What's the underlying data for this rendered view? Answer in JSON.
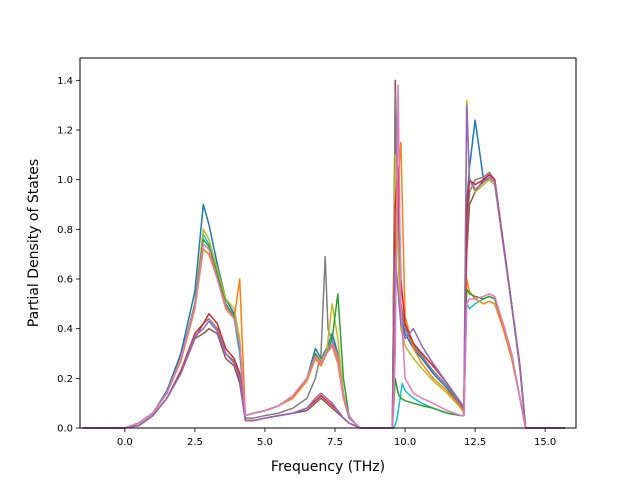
{
  "chart_data": {
    "type": "line",
    "title": "",
    "xlabel": "Frequency (THz)",
    "ylabel": "Partial Density of States",
    "xlim": [
      -1.6,
      16.1
    ],
    "ylim": [
      0.0,
      1.49
    ],
    "xticks": [
      0.0,
      2.5,
      5.0,
      7.5,
      10.0,
      12.5,
      15.0
    ],
    "xtick_labels": [
      "0.0",
      "2.5",
      "5.0",
      "7.5",
      "10.0",
      "12.5",
      "15.0"
    ],
    "yticks": [
      0.0,
      0.2,
      0.4,
      0.6,
      0.8,
      1.0,
      1.2,
      1.4
    ],
    "ytick_labels": [
      "0.0",
      "0.2",
      "0.4",
      "0.6",
      "0.8",
      "1.0",
      "1.2",
      "1.4"
    ],
    "grid": false,
    "legend": "none",
    "series": [
      {
        "color": "#17becf",
        "x": [
          -1.5,
          0.0,
          0.5,
          1.0,
          1.5,
          2.0,
          2.5,
          2.8,
          3.0,
          3.3,
          3.6,
          3.9,
          4.1,
          4.3,
          4.6,
          5.0,
          5.5,
          6.0,
          6.5,
          6.8,
          7.0,
          7.2,
          7.4,
          7.6,
          7.8,
          8.0,
          8.2,
          8.4,
          9.6,
          9.7,
          9.8,
          9.9,
          10.0,
          10.3,
          10.6,
          11.0,
          11.5,
          12.0,
          12.1,
          12.2,
          12.3,
          12.5,
          12.8,
          13.0,
          13.2,
          13.5,
          13.8,
          14.1,
          14.3,
          15.7
        ],
        "y": [
          0.0,
          0.0,
          0.02,
          0.06,
          0.14,
          0.28,
          0.5,
          0.78,
          0.74,
          0.62,
          0.5,
          0.44,
          0.3,
          0.05,
          0.06,
          0.07,
          0.09,
          0.13,
          0.2,
          0.3,
          0.26,
          0.3,
          0.34,
          0.28,
          0.12,
          0.05,
          0.02,
          0.0,
          0.0,
          0.03,
          0.1,
          0.18,
          0.15,
          0.12,
          0.1,
          0.08,
          0.06,
          0.05,
          0.05,
          0.5,
          0.48,
          0.5,
          0.52,
          0.53,
          0.52,
          0.42,
          0.3,
          0.12,
          0.0,
          0.0
        ]
      },
      {
        "color": "#8c564b",
        "x": [
          -1.5,
          0.0,
          0.5,
          1.0,
          1.5,
          2.0,
          2.5,
          2.8,
          3.0,
          3.3,
          3.6,
          3.9,
          4.1,
          4.3,
          4.6,
          5.0,
          5.5,
          6.0,
          6.5,
          6.8,
          7.0,
          7.2,
          7.4,
          7.6,
          7.8,
          8.0,
          8.2,
          8.4,
          9.55,
          9.65,
          9.75,
          9.85,
          10.0,
          10.3,
          10.6,
          11.0,
          11.5,
          12.0,
          12.1,
          12.2,
          12.3,
          12.5,
          12.8,
          13.0,
          13.2,
          13.5,
          13.8,
          14.1,
          14.3,
          15.7
        ],
        "y": [
          0.0,
          0.0,
          0.01,
          0.05,
          0.12,
          0.22,
          0.36,
          0.38,
          0.4,
          0.38,
          0.28,
          0.25,
          0.18,
          0.03,
          0.03,
          0.04,
          0.05,
          0.06,
          0.07,
          0.1,
          0.12,
          0.1,
          0.08,
          0.06,
          0.04,
          0.02,
          0.01,
          0.0,
          0.0,
          1.4,
          0.9,
          0.5,
          0.4,
          0.34,
          0.3,
          0.25,
          0.18,
          0.1,
          0.08,
          0.7,
          0.9,
          0.95,
          1.0,
          1.02,
          1.0,
          0.75,
          0.5,
          0.25,
          0.0,
          0.0
        ]
      },
      {
        "color": "#1f77b4",
        "x": [
          -1.5,
          0.0,
          0.5,
          1.0,
          1.5,
          2.0,
          2.5,
          2.8,
          3.0,
          3.3,
          3.6,
          3.9,
          4.1,
          4.3,
          4.6,
          5.0,
          5.5,
          6.0,
          6.5,
          6.8,
          7.0,
          7.2,
          7.4,
          7.6,
          7.8,
          8.0,
          8.2,
          8.4,
          9.55,
          9.65,
          9.75,
          9.85,
          10.0,
          10.3,
          10.6,
          11.0,
          11.5,
          12.0,
          12.1,
          12.2,
          12.3,
          12.5,
          12.8,
          13.0,
          13.2,
          13.5,
          13.8,
          14.1,
          14.3,
          15.7
        ],
        "y": [
          0.0,
          0.0,
          0.02,
          0.06,
          0.15,
          0.3,
          0.55,
          0.9,
          0.82,
          0.66,
          0.52,
          0.46,
          0.33,
          0.05,
          0.06,
          0.07,
          0.09,
          0.13,
          0.2,
          0.32,
          0.28,
          0.32,
          0.38,
          0.3,
          0.14,
          0.05,
          0.02,
          0.0,
          0.0,
          1.25,
          0.8,
          0.45,
          0.38,
          0.32,
          0.28,
          0.22,
          0.16,
          0.09,
          0.07,
          0.9,
          1.05,
          1.24,
          1.0,
          1.0,
          0.98,
          0.75,
          0.5,
          0.24,
          0.0,
          0.0
        ]
      },
      {
        "color": "#7f7f7f",
        "x": [
          -1.5,
          0.0,
          0.5,
          1.0,
          1.5,
          2.0,
          2.5,
          2.8,
          3.0,
          3.3,
          3.6,
          3.9,
          4.1,
          4.3,
          4.6,
          5.0,
          5.5,
          6.0,
          6.5,
          6.8,
          7.0,
          7.15,
          7.25,
          7.4,
          7.6,
          7.8,
          8.0,
          8.2,
          8.4,
          9.55,
          9.65,
          9.75,
          9.85,
          10.0,
          10.3,
          10.6,
          11.0,
          11.5,
          12.0,
          12.1,
          12.2,
          12.3,
          12.5,
          12.8,
          13.0,
          13.2,
          13.5,
          13.8,
          14.1,
          14.3,
          15.7
        ],
        "y": [
          0.0,
          0.0,
          0.01,
          0.05,
          0.12,
          0.22,
          0.36,
          0.42,
          0.44,
          0.4,
          0.3,
          0.27,
          0.2,
          0.04,
          0.04,
          0.05,
          0.06,
          0.08,
          0.12,
          0.2,
          0.3,
          0.69,
          0.4,
          0.35,
          0.3,
          0.12,
          0.04,
          0.02,
          0.0,
          0.0,
          1.35,
          0.85,
          0.48,
          0.4,
          0.33,
          0.29,
          0.23,
          0.17,
          0.09,
          0.07,
          0.8,
          0.95,
          1.0,
          1.01,
          1.03,
          1.0,
          0.75,
          0.5,
          0.24,
          0.0,
          0.0
        ]
      },
      {
        "color": "#bcbd22",
        "x": [
          -1.5,
          0.0,
          0.5,
          1.0,
          1.5,
          2.0,
          2.5,
          2.8,
          3.0,
          3.3,
          3.6,
          3.9,
          4.1,
          4.3,
          4.6,
          5.0,
          5.5,
          6.0,
          6.5,
          6.8,
          7.0,
          7.2,
          7.4,
          7.6,
          7.8,
          8.0,
          8.2,
          8.4,
          9.55,
          9.65,
          9.75,
          9.85,
          10.0,
          10.3,
          10.6,
          11.0,
          11.5,
          12.0,
          12.1,
          12.2,
          12.3,
          12.5,
          12.8,
          13.0,
          13.2,
          13.5,
          13.8,
          14.1,
          14.3,
          15.7
        ],
        "y": [
          0.0,
          0.0,
          0.02,
          0.06,
          0.14,
          0.28,
          0.5,
          0.8,
          0.76,
          0.64,
          0.52,
          0.48,
          0.36,
          0.05,
          0.06,
          0.07,
          0.09,
          0.13,
          0.2,
          0.3,
          0.27,
          0.31,
          0.5,
          0.36,
          0.14,
          0.05,
          0.02,
          0.0,
          0.0,
          1.1,
          0.7,
          0.4,
          0.33,
          0.28,
          0.24,
          0.19,
          0.14,
          0.08,
          0.06,
          1.32,
          1.0,
          0.95,
          0.98,
          1.0,
          0.98,
          0.74,
          0.49,
          0.24,
          0.0,
          0.0
        ]
      },
      {
        "color": "#ff7f0e",
        "x": [
          -1.5,
          0.0,
          0.5,
          1.0,
          1.5,
          2.0,
          2.5,
          2.8,
          3.0,
          3.3,
          3.6,
          3.9,
          4.1,
          4.3,
          4.6,
          5.0,
          5.5,
          6.0,
          6.5,
          6.8,
          7.0,
          7.2,
          7.4,
          7.6,
          7.8,
          8.0,
          8.2,
          8.4,
          9.55,
          9.65,
          9.75,
          9.85,
          10.0,
          10.3,
          10.6,
          11.0,
          11.5,
          12.0,
          12.1,
          12.2,
          12.3,
          12.5,
          12.8,
          13.0,
          13.2,
          13.5,
          13.8,
          14.1,
          14.3,
          15.7
        ],
        "y": [
          0.0,
          0.0,
          0.02,
          0.06,
          0.14,
          0.27,
          0.48,
          0.72,
          0.7,
          0.6,
          0.48,
          0.44,
          0.6,
          0.05,
          0.06,
          0.07,
          0.09,
          0.12,
          0.19,
          0.28,
          0.25,
          0.3,
          0.33,
          0.26,
          0.12,
          0.05,
          0.02,
          0.0,
          0.0,
          0.6,
          1.0,
          1.15,
          0.45,
          0.32,
          0.26,
          0.2,
          0.15,
          0.08,
          0.06,
          0.6,
          0.55,
          0.52,
          0.5,
          0.51,
          0.5,
          0.4,
          0.28,
          0.12,
          0.0,
          0.0
        ]
      },
      {
        "color": "#2ca02c",
        "x": [
          -1.5,
          0.0,
          0.5,
          1.0,
          1.5,
          2.0,
          2.5,
          2.8,
          3.0,
          3.3,
          3.6,
          3.9,
          4.1,
          4.3,
          4.6,
          5.0,
          5.5,
          6.0,
          6.5,
          6.8,
          7.0,
          7.2,
          7.4,
          7.6,
          7.8,
          8.0,
          8.2,
          8.4,
          9.55,
          9.65,
          9.75,
          9.85,
          10.0,
          10.3,
          10.6,
          11.0,
          11.5,
          12.0,
          12.1,
          12.2,
          12.3,
          12.5,
          12.8,
          13.0,
          13.2,
          13.5,
          13.8,
          14.1,
          14.3,
          15.7
        ],
        "y": [
          0.0,
          0.0,
          0.02,
          0.06,
          0.14,
          0.28,
          0.5,
          0.76,
          0.73,
          0.62,
          0.5,
          0.45,
          0.32,
          0.05,
          0.06,
          0.07,
          0.09,
          0.13,
          0.2,
          0.3,
          0.26,
          0.3,
          0.36,
          0.54,
          0.2,
          0.05,
          0.02,
          0.0,
          0.0,
          0.2,
          0.14,
          0.12,
          0.11,
          0.1,
          0.09,
          0.08,
          0.06,
          0.05,
          0.05,
          0.56,
          0.54,
          0.53,
          0.52,
          0.53,
          0.52,
          0.42,
          0.3,
          0.12,
          0.0,
          0.0
        ]
      },
      {
        "color": "#d62728",
        "x": [
          -1.5,
          0.0,
          0.5,
          1.0,
          1.5,
          2.0,
          2.5,
          2.8,
          3.0,
          3.3,
          3.6,
          3.9,
          4.1,
          4.3,
          4.6,
          5.0,
          5.5,
          6.0,
          6.5,
          6.8,
          7.0,
          7.2,
          7.4,
          7.6,
          7.8,
          8.0,
          8.2,
          8.4,
          9.55,
          9.65,
          9.75,
          9.85,
          10.0,
          10.3,
          10.6,
          11.0,
          11.5,
          12.0,
          12.1,
          12.2,
          12.3,
          12.5,
          12.8,
          13.0,
          13.2,
          13.5,
          13.8,
          14.1,
          14.3,
          15.7
        ],
        "y": [
          0.0,
          0.0,
          0.01,
          0.05,
          0.12,
          0.23,
          0.38,
          0.42,
          0.46,
          0.42,
          0.32,
          0.28,
          0.22,
          0.03,
          0.03,
          0.04,
          0.05,
          0.06,
          0.08,
          0.11,
          0.13,
          0.11,
          0.09,
          0.07,
          0.04,
          0.02,
          0.01,
          0.0,
          0.0,
          0.9,
          1.05,
          0.6,
          0.42,
          0.34,
          0.3,
          0.25,
          0.18,
          0.1,
          0.08,
          0.85,
          1.0,
          0.98,
          1.0,
          1.02,
          1.0,
          0.75,
          0.5,
          0.25,
          0.0,
          0.0
        ]
      },
      {
        "color": "#9467bd",
        "x": [
          -1.5,
          0.0,
          0.5,
          1.0,
          1.5,
          2.0,
          2.5,
          2.8,
          3.0,
          3.3,
          3.6,
          3.9,
          4.1,
          4.3,
          4.6,
          5.0,
          5.5,
          6.0,
          6.5,
          6.8,
          7.0,
          7.2,
          7.4,
          7.6,
          7.8,
          8.0,
          8.2,
          8.4,
          9.55,
          9.65,
          9.75,
          9.85,
          10.0,
          10.3,
          10.6,
          11.0,
          11.5,
          12.0,
          12.1,
          12.2,
          12.3,
          12.5,
          12.8,
          13.0,
          13.2,
          13.5,
          13.8,
          14.1,
          14.3,
          15.7
        ],
        "y": [
          0.0,
          0.0,
          0.01,
          0.05,
          0.12,
          0.22,
          0.37,
          0.4,
          0.43,
          0.39,
          0.3,
          0.26,
          0.2,
          0.03,
          0.03,
          0.04,
          0.05,
          0.06,
          0.08,
          0.12,
          0.14,
          0.12,
          0.1,
          0.07,
          0.04,
          0.02,
          0.01,
          0.0,
          0.0,
          0.7,
          0.55,
          0.42,
          0.36,
          0.4,
          0.33,
          0.26,
          0.18,
          0.1,
          0.08,
          1.3,
          1.0,
          0.96,
          0.99,
          1.01,
          0.99,
          0.74,
          0.5,
          0.24,
          0.0,
          0.0
        ]
      },
      {
        "color": "#e377c2",
        "x": [
          -1.5,
          0.0,
          0.5,
          1.0,
          1.5,
          2.0,
          2.5,
          2.8,
          3.0,
          3.3,
          3.6,
          3.9,
          4.1,
          4.3,
          4.6,
          5.0,
          5.5,
          6.0,
          6.5,
          6.8,
          7.0,
          7.2,
          7.4,
          7.6,
          7.8,
          8.0,
          8.2,
          8.4,
          9.55,
          9.65,
          9.75,
          9.85,
          10.0,
          10.3,
          10.6,
          11.0,
          11.5,
          12.0,
          12.1,
          12.2,
          12.3,
          12.5,
          12.8,
          13.0,
          13.2,
          13.5,
          13.8,
          14.1,
          14.3,
          15.7
        ],
        "y": [
          0.0,
          0.0,
          0.02,
          0.06,
          0.14,
          0.28,
          0.49,
          0.74,
          0.72,
          0.6,
          0.49,
          0.44,
          0.34,
          0.05,
          0.06,
          0.07,
          0.09,
          0.13,
          0.2,
          0.29,
          0.26,
          0.3,
          0.34,
          0.28,
          0.13,
          0.05,
          0.02,
          0.0,
          0.0,
          0.3,
          1.38,
          0.5,
          0.2,
          0.14,
          0.12,
          0.1,
          0.07,
          0.05,
          0.05,
          0.5,
          0.52,
          0.52,
          0.53,
          0.54,
          0.53,
          0.42,
          0.3,
          0.12,
          0.0,
          0.0
        ]
      }
    ]
  }
}
